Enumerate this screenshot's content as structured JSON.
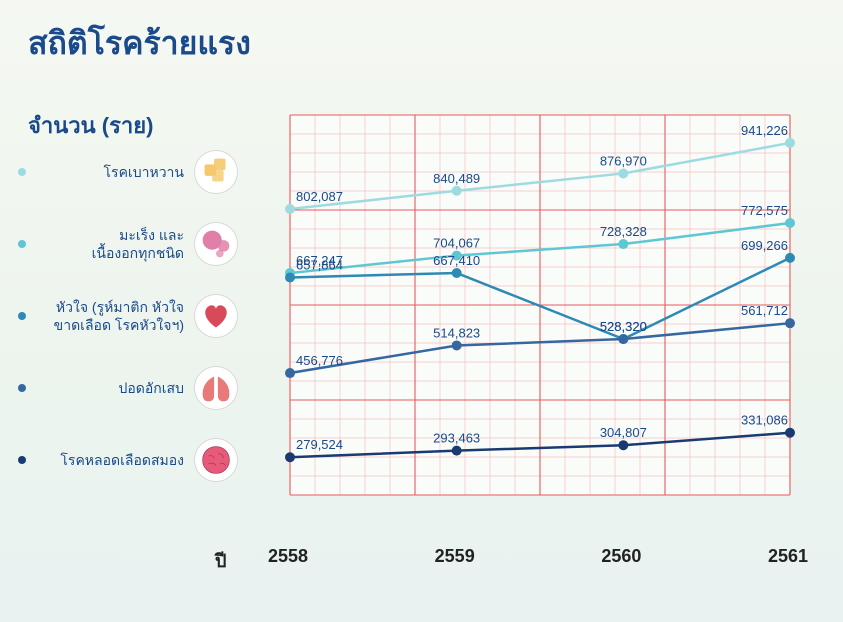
{
  "title": "สถิติโรคร้ายแรง",
  "subtitle": "จำนวน (ราย)",
  "xaxis_label": "ปี",
  "categories": [
    "2558",
    "2559",
    "2560",
    "2561"
  ],
  "legend": [
    {
      "label": "โรคเบาหวาน",
      "dot_color": "#9edbe0",
      "icon_shape": "sugar",
      "icon_color": "#f5c96b"
    },
    {
      "label": "มะเร็ง และ\nเนื้องอกทุกชนิด",
      "dot_color": "#5ec7d3",
      "icon_shape": "cells",
      "icon_color": "#e07fa8"
    },
    {
      "label": "หัวใจ (รูห์มาติก หัวใจ\nขาดเลือด โรคหัวใจฯ)",
      "dot_color": "#2c8ab5",
      "icon_shape": "heart",
      "icon_color": "#d84a5a"
    },
    {
      "label": "ปอดอักเสบ",
      "dot_color": "#3567a0",
      "icon_shape": "lungs",
      "icon_color": "#e97a7a"
    },
    {
      "label": "โรคหลอดเลือดสมอง",
      "dot_color": "#1a3a72",
      "icon_shape": "brain",
      "icon_color": "#e75a7a"
    }
  ],
  "chart": {
    "type": "line",
    "xlim": [
      0,
      3
    ],
    "ylim": [
      200000,
      1000000
    ],
    "grid_minor": "#f2c1c1",
    "grid_major": "#e85a5a",
    "background": "#fafcf9",
    "label_fontsize": 13,
    "label_color": "#1a4a8a",
    "marker_size": 5,
    "line_width": 2.5,
    "series": [
      {
        "name": "โรคเบาหวาน",
        "color": "#9edbe0",
        "values": [
          802087,
          840489,
          876970,
          941226
        ],
        "labels": [
          "802,087",
          "840,489",
          "876,970",
          "941,226"
        ]
      },
      {
        "name": "มะเร็ง และเนื้องอกทุกชนิด",
        "color": "#5ec7d3",
        "values": [
          667247,
          704067,
          728328,
          772575
        ],
        "labels": [
          "667,247",
          "704,067",
          "728,328",
          "772,575"
        ]
      },
      {
        "name": "หัวใจ",
        "color": "#2c8ab5",
        "values": [
          657864,
          667410,
          528320,
          699266
        ],
        "labels": [
          "657,864",
          "667,410",
          "528,320",
          "699,266"
        ]
      },
      {
        "name": "ปอดอักเสบ",
        "color": "#3567a0",
        "values": [
          456776,
          514823,
          528320,
          561712
        ],
        "labels": [
          "456,776",
          "514,823",
          "528,320",
          "561,712"
        ]
      },
      {
        "name": "โรคหลอดเลือดสมอง",
        "color": "#1a3a72",
        "values": [
          279524,
          293463,
          304807,
          331086
        ],
        "labels": [
          "279,524",
          "293,463",
          "304,807",
          "331,086"
        ]
      }
    ]
  }
}
